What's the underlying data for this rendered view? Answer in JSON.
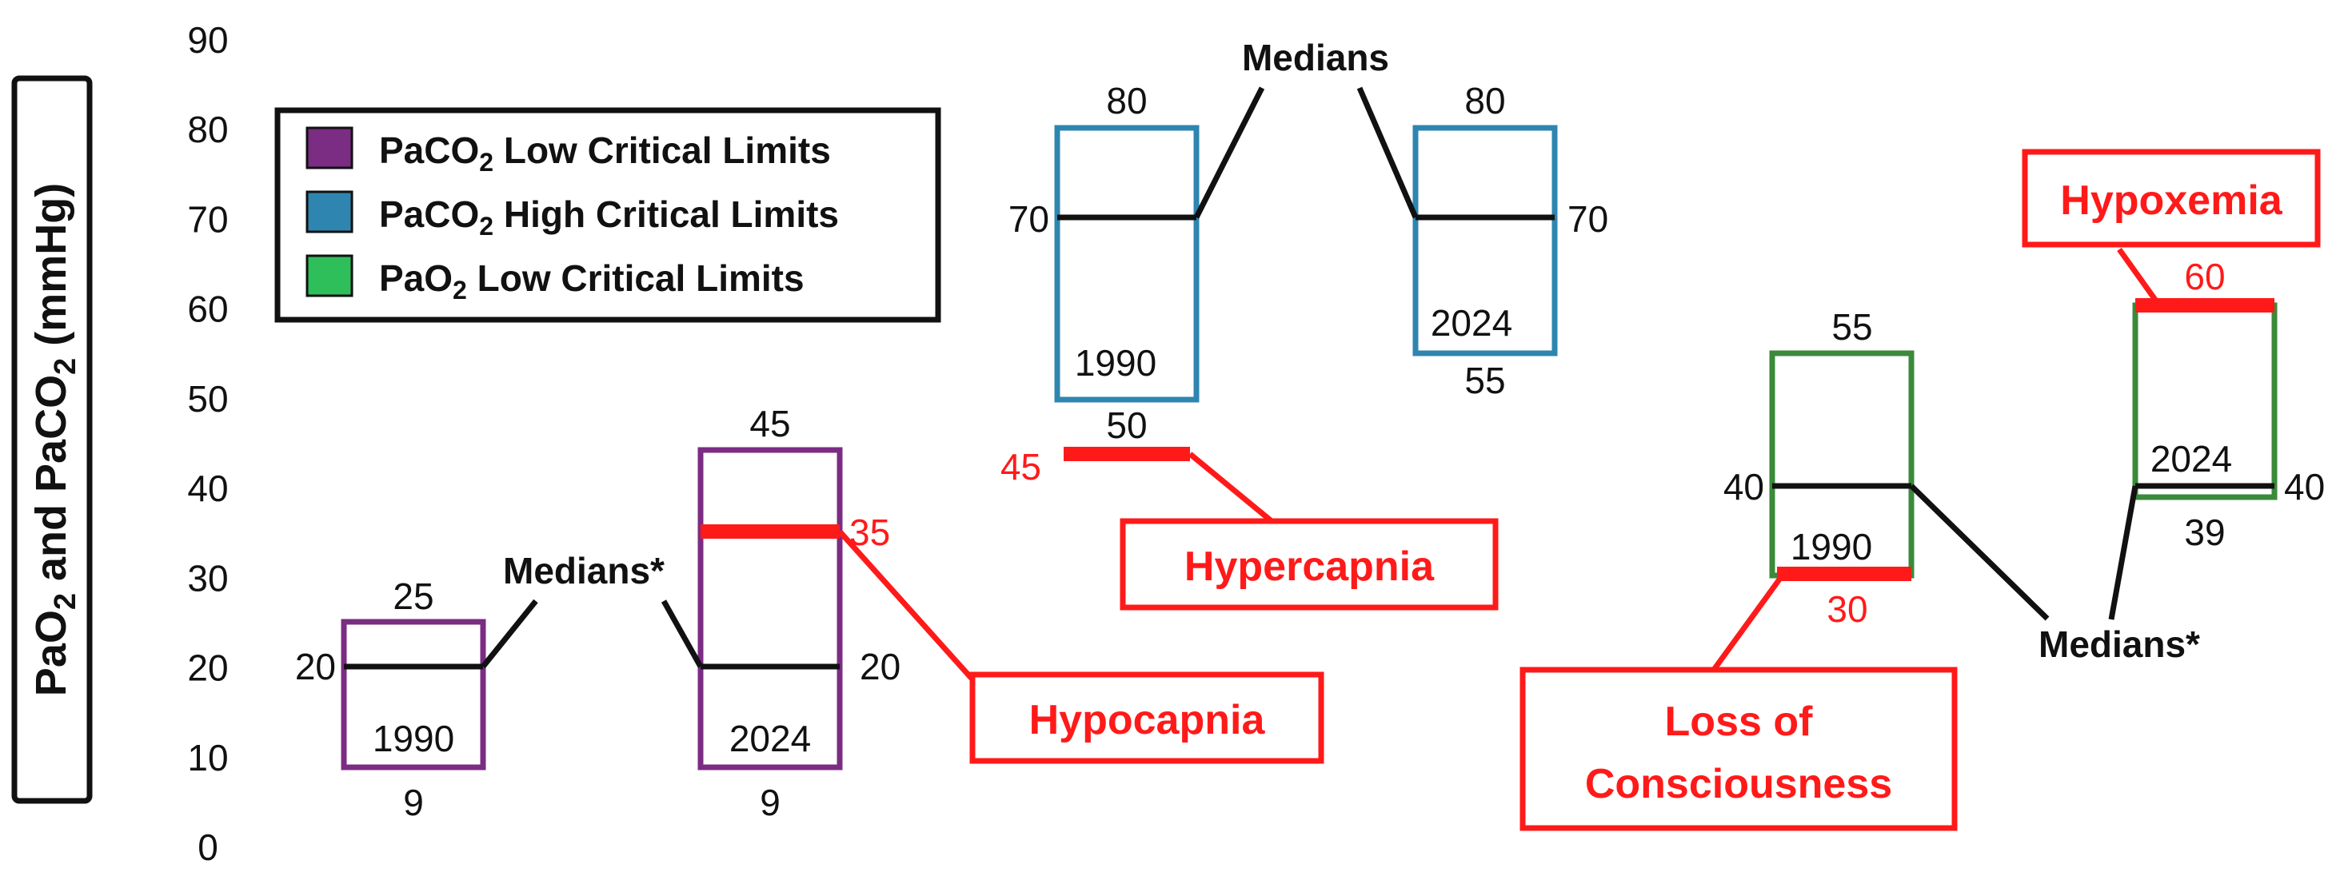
{
  "chart_data": {
    "type": "box",
    "ylabel": "PaO2 and PaCO2 (mmHg)",
    "ylim": [
      0,
      90
    ],
    "yticks": [
      0,
      10,
      20,
      30,
      40,
      50,
      60,
      70,
      80,
      90
    ],
    "legend": {
      "placement": "top-left",
      "entries": [
        {
          "label": "PaCO2 Low Critical Limits",
          "color": "#7B2C83"
        },
        {
          "label": "PaCO2 High Critical Limits",
          "color": "#2E86B0"
        },
        {
          "label": "PaO2 Low Critical Limits",
          "color": "#3A8A3A"
        }
      ]
    },
    "boxes": [
      {
        "group": "PaCO2 Low Critical Limits",
        "year": "1990",
        "low": 9,
        "high": 25,
        "median": 20
      },
      {
        "group": "PaCO2 Low Critical Limits",
        "year": "2024",
        "low": 9,
        "high": 45,
        "median": 20
      },
      {
        "group": "PaCO2 High Critical Limits",
        "year": "1990",
        "low": 50,
        "high": 80,
        "median": 70
      },
      {
        "group": "PaCO2 High Critical Limits",
        "year": "2024",
        "low": 55,
        "high": 80,
        "median": 70
      },
      {
        "group": "PaO2 Low Critical Limits",
        "year": "1990",
        "low": 30,
        "high": 55,
        "median": 40
      },
      {
        "group": "PaO2 Low Critical Limits",
        "year": "2024",
        "low": 39,
        "high": 60,
        "median": 40
      }
    ],
    "thresholds": [
      {
        "label": "Hypocapnia",
        "value": 35
      },
      {
        "label": "Hypercapnia",
        "value": 45
      },
      {
        "label": "Loss of Consciousness",
        "value": 30
      },
      {
        "label": "Hypoxemia",
        "value": 60
      }
    ],
    "annotations": [
      "Medians*",
      "Medians",
      "Medians*"
    ]
  },
  "text": {
    "ylabel_main": "PaO",
    "ylabel_sub1": "2",
    "ylabel_mid": " and PaCO",
    "ylabel_sub2": "2",
    "ylabel_tail": " (mmHg)",
    "legend1_a": "PaCO",
    "legend1_sub": "2",
    "legend1_b": " Low Critical Limits",
    "legend2_a": "PaCO",
    "legend2_sub": "2",
    "legend2_b": " High Critical Limits",
    "legend3_a": "PaO",
    "legend3_sub": "2",
    "legend3_b": " Low Critical Limits",
    "medians_left": "Medians*",
    "medians_top": "Medians",
    "medians_right": "Medians*",
    "box1_year": "1990",
    "box2_year": "2024",
    "box3_year": "1990",
    "box4_year": "2024",
    "box5_year": "1990",
    "box6_year": "2024",
    "hypocapnia": "Hypocapnia",
    "hypercapnia": "Hypercapnia",
    "loc_line1": "Loss of",
    "loc_line2": "Consciousness",
    "hypoxemia": "Hypoxemia",
    "label_box1_high": "25",
    "label_box1_median": "20",
    "label_box1_low": "9",
    "label_box2_high": "45",
    "label_box2_median": "20",
    "label_box2_low": "9",
    "label_box2_threshold": "35",
    "label_box3_high": "80",
    "label_box3_median": "70",
    "label_box3_low": "50",
    "label_box3_threshold": "45",
    "label_box4_high": "80",
    "label_box4_median": "70",
    "label_box4_low": "55",
    "label_box5_high": "55",
    "label_box5_median": "40",
    "label_box5_threshold": "30",
    "label_box6_high": "60",
    "label_box6_median": "40",
    "label_box6_low": "39"
  },
  "colors": {
    "purple": "#7B2C83",
    "blue": "#2E86B0",
    "green": "#3A8A3A",
    "red": "#FF1A1A",
    "black": "#111111",
    "legend_purple_fill": "#7B2C83",
    "legend_blue_fill": "#2E86B0",
    "legend_green_fill": "#2FBF5A"
  }
}
